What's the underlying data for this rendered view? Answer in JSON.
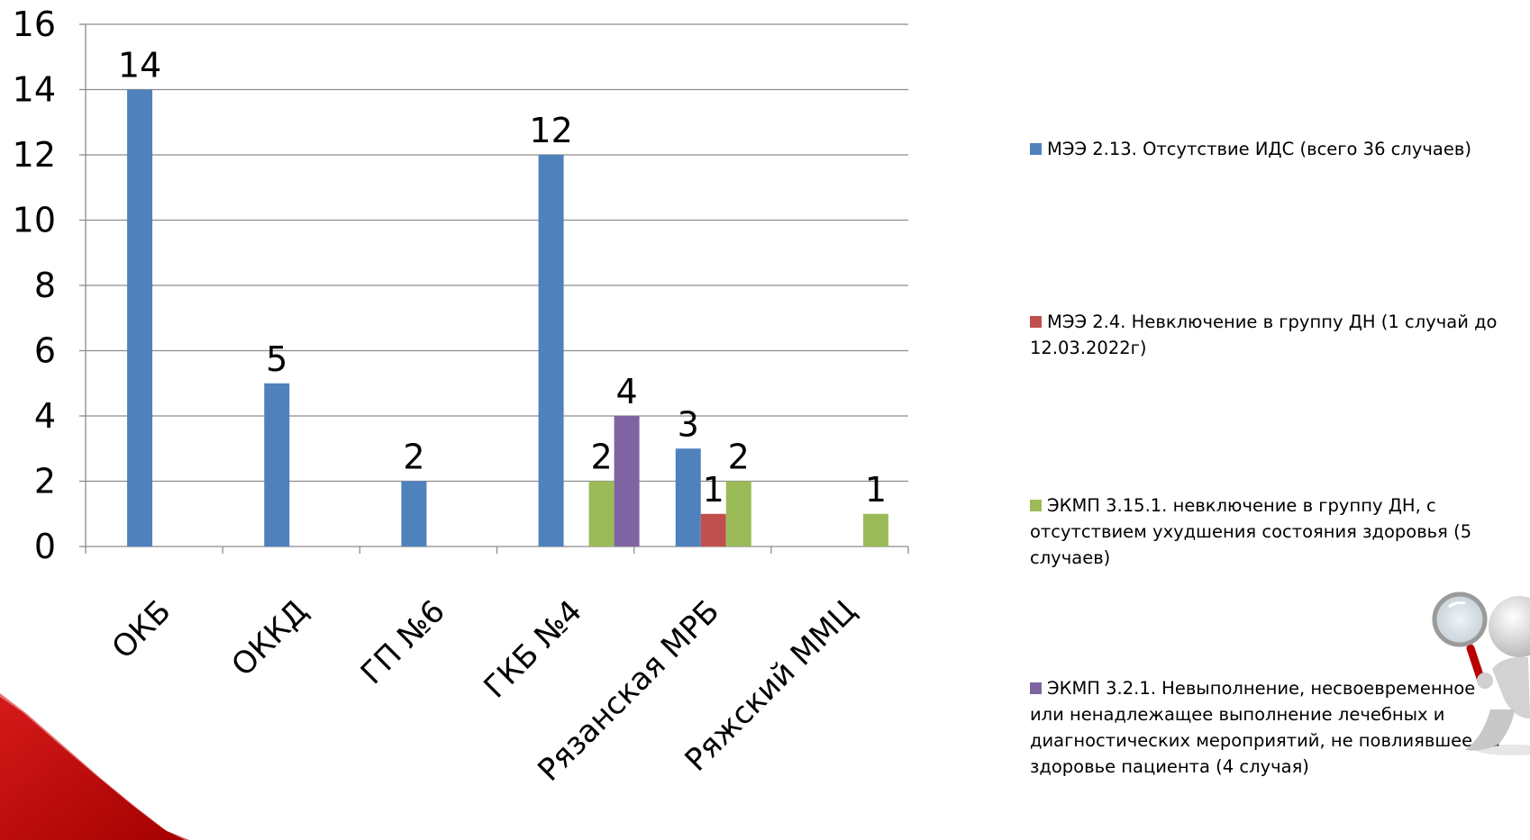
{
  "chart_data": {
    "type": "bar",
    "categories": [
      "ОКБ",
      "ОККД",
      "ГП №6",
      "ГКБ №4",
      "Рязанская МРБ",
      "Ряжский ММЦ"
    ],
    "ylim": [
      0,
      16
    ],
    "yticks": [
      0,
      2,
      4,
      6,
      8,
      10,
      12,
      14,
      16
    ],
    "grid": true,
    "legend_position": "right",
    "series": [
      {
        "name": "МЭЭ 2.13. Отсутствие ИДС (всего 36 случаев)",
        "color": "#4F81BD",
        "values": [
          14,
          5,
          2,
          12,
          3,
          null
        ]
      },
      {
        "name": "МЭЭ 2.4. Невключение в группу ДН (1 случай до 12.03.2022г)",
        "color": "#C0504D",
        "values": [
          null,
          null,
          null,
          null,
          1,
          null
        ]
      },
      {
        "name": "ЭКМП 3.15.1. невключение в группу ДН, с отсутствием ухудшения состояния здоровья (5 случаев)",
        "color": "#9BBB59",
        "values": [
          null,
          null,
          null,
          2,
          2,
          1
        ]
      },
      {
        "name": "ЭКМП 3.2.1. Невыполнение, несвоевременное или ненадлежащее выполнение лечебных и диагностических мероприятий, не повлиявшее на здоровье пациента (4 случая)",
        "color": "#8064A2",
        "values": [
          null,
          null,
          null,
          4,
          null,
          null
        ]
      }
    ]
  },
  "legend": {
    "items": [
      "МЭЭ 2.13. Отсутствие ИДС (всего 36 случаев)",
      "МЭЭ 2.4. Невключение в группу ДН (1 случай до 12.03.2022г)",
      "ЭКМП 3.15.1. невключение в группу ДН, с отсутствием ухудшения состояния здоровья (5 случаев)",
      "ЭКМП 3.2.1. Невыполнение, несвоевременное или ненадлежащее выполнение лечебных и диагностических мероприятий, не повлиявшее на здоровье пациента (4 случая)"
    ],
    "colors": [
      "#4F81BD",
      "#C0504D",
      "#9BBB59",
      "#8064A2"
    ]
  },
  "decor": {
    "accent": "#C00000",
    "icon": "magnifier-figure-icon"
  }
}
